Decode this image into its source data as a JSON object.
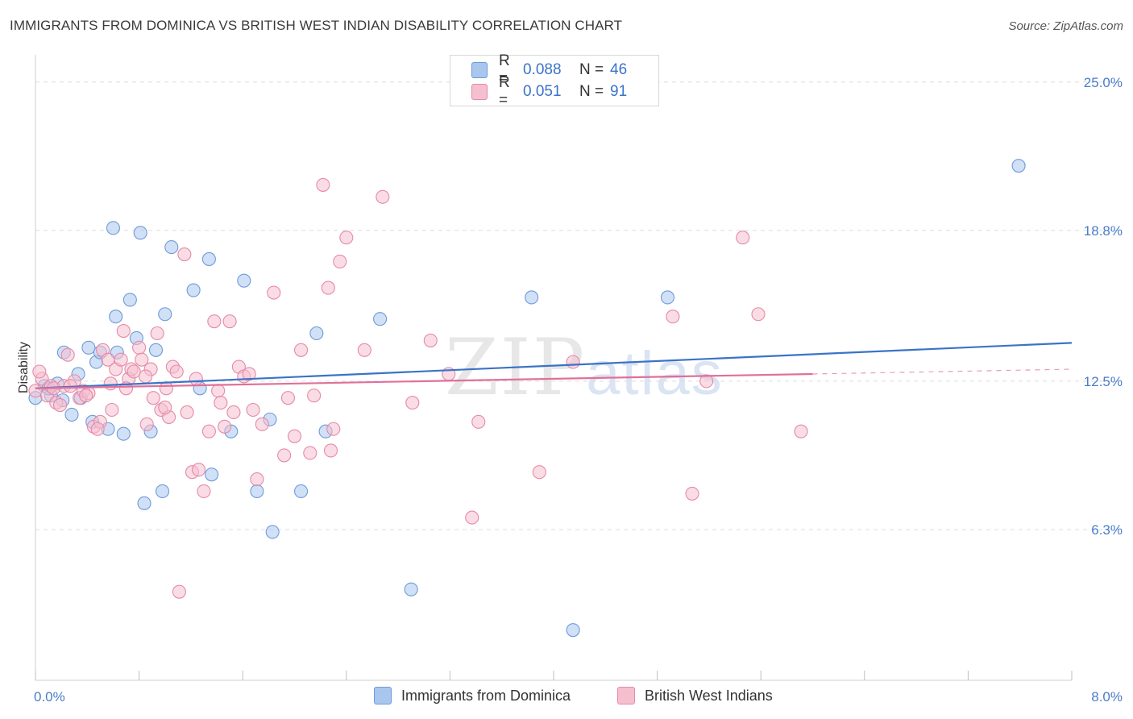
{
  "header": {
    "title": "IMMIGRANTS FROM DOMINICA VS BRITISH WEST INDIAN DISABILITY CORRELATION CHART",
    "source": "Source: ZipAtlas.com"
  },
  "watermark": {
    "zip": "ZIP",
    "atlas": "atlas"
  },
  "legend": {
    "rows": [
      {
        "r_label": "R =",
        "r_value": "0.088",
        "n_label": "N =",
        "n_value": "46",
        "color": "#a9c6ef",
        "border": "#6f9ad8"
      },
      {
        "r_label": "R =",
        "r_value": "0.051",
        "n_label": "N =",
        "n_value": "91",
        "color": "#f6bfd0",
        "border": "#e58aa8"
      }
    ]
  },
  "bottom_legend": [
    {
      "label": "Immigrants from Dominica",
      "color": "#a9c6ef",
      "border": "#6f9ad8"
    },
    {
      "label": "British West Indians",
      "color": "#f6bfd0",
      "border": "#e58aa8"
    }
  ],
  "chart_data": {
    "type": "scatter",
    "ylabel": "Disability",
    "xlim": [
      0,
      8
    ],
    "ylim": [
      0,
      25.8
    ],
    "x_tick_labels": [
      {
        "value": 0,
        "label": "0.0%"
      },
      {
        "value": 8,
        "label": "8.0%"
      }
    ],
    "y_ticks": [
      {
        "value": 6.3,
        "label": "6.3%"
      },
      {
        "value": 12.5,
        "label": "12.5%"
      },
      {
        "value": 18.8,
        "label": "18.8%"
      },
      {
        "value": 25.0,
        "label": "25.0%"
      }
    ],
    "grid": "horizontal dashed",
    "series": [
      {
        "name": "Immigrants from Dominica",
        "color": "#6f9ad8",
        "fill": "#a9c6ef",
        "trend": {
          "x0": 0,
          "y0": 12.2,
          "x1": 8,
          "y1": 14.1,
          "color": "#3a73c8"
        },
        "points": [
          [
            0.0,
            11.8
          ],
          [
            0.07,
            12.3
          ],
          [
            0.12,
            11.9
          ],
          [
            0.17,
            12.4
          ],
          [
            0.21,
            11.7
          ],
          [
            0.22,
            13.7
          ],
          [
            0.28,
            11.1
          ],
          [
            0.33,
            12.8
          ],
          [
            0.35,
            11.8
          ],
          [
            0.41,
            13.9
          ],
          [
            0.44,
            10.8
          ],
          [
            0.47,
            13.3
          ],
          [
            0.5,
            13.7
          ],
          [
            0.56,
            10.5
          ],
          [
            0.62,
            15.2
          ],
          [
            0.63,
            13.7
          ],
          [
            0.68,
            10.3
          ],
          [
            0.73,
            15.9
          ],
          [
            0.78,
            14.3
          ],
          [
            0.81,
            18.7
          ],
          [
            0.84,
            7.4
          ],
          [
            0.89,
            10.4
          ],
          [
            0.93,
            13.8
          ],
          [
            0.98,
            7.9
          ],
          [
            1.0,
            15.3
          ],
          [
            1.05,
            18.1
          ],
          [
            1.22,
            16.3
          ],
          [
            1.27,
            12.2
          ],
          [
            1.34,
            17.6
          ],
          [
            1.36,
            8.6
          ],
          [
            1.51,
            10.4
          ],
          [
            1.61,
            16.7
          ],
          [
            1.71,
            7.9
          ],
          [
            1.81,
            10.9
          ],
          [
            1.83,
            6.2
          ],
          [
            2.05,
            7.9
          ],
          [
            2.17,
            14.5
          ],
          [
            2.24,
            10.4
          ],
          [
            2.66,
            15.1
          ],
          [
            2.9,
            3.8
          ],
          [
            3.83,
            16.0
          ],
          [
            4.15,
            2.1
          ],
          [
            4.88,
            16.0
          ],
          [
            7.59,
            21.5
          ],
          [
            0.6,
            18.9
          ],
          [
            0.1,
            12.2
          ]
        ]
      },
      {
        "name": "British West Indians",
        "color": "#e58aa8",
        "fill": "#f6bfd0",
        "trend": {
          "x0": 0,
          "y0": 12.2,
          "x1": 6.0,
          "y1": 12.8,
          "dash_to_x": 8.0,
          "dash_to_y": 13.0,
          "color": "#e0709a"
        },
        "points": [
          [
            0.0,
            12.1
          ],
          [
            0.05,
            12.6
          ],
          [
            0.09,
            11.9
          ],
          [
            0.12,
            12.3
          ],
          [
            0.16,
            11.6
          ],
          [
            0.22,
            12.3
          ],
          [
            0.25,
            13.6
          ],
          [
            0.3,
            12.5
          ],
          [
            0.34,
            11.8
          ],
          [
            0.37,
            12.1
          ],
          [
            0.41,
            12.0
          ],
          [
            0.45,
            10.6
          ],
          [
            0.5,
            10.8
          ],
          [
            0.52,
            13.8
          ],
          [
            0.56,
            13.4
          ],
          [
            0.59,
            11.3
          ],
          [
            0.62,
            13.0
          ],
          [
            0.66,
            13.4
          ],
          [
            0.68,
            14.6
          ],
          [
            0.72,
            12.6
          ],
          [
            0.74,
            13.0
          ],
          [
            0.76,
            12.9
          ],
          [
            0.8,
            13.9
          ],
          [
            0.82,
            13.4
          ],
          [
            0.86,
            10.7
          ],
          [
            0.89,
            13.0
          ],
          [
            0.91,
            11.8
          ],
          [
            0.94,
            14.5
          ],
          [
            0.97,
            11.3
          ],
          [
            1.01,
            12.2
          ],
          [
            1.03,
            11.0
          ],
          [
            1.06,
            13.1
          ],
          [
            1.09,
            12.9
          ],
          [
            1.11,
            3.7
          ],
          [
            1.15,
            17.8
          ],
          [
            1.17,
            11.2
          ],
          [
            1.21,
            8.7
          ],
          [
            1.24,
            12.6
          ],
          [
            1.26,
            8.8
          ],
          [
            1.3,
            7.9
          ],
          [
            1.34,
            10.4
          ],
          [
            1.38,
            15.0
          ],
          [
            1.41,
            12.1
          ],
          [
            1.43,
            11.6
          ],
          [
            1.46,
            10.6
          ],
          [
            1.5,
            15.0
          ],
          [
            1.53,
            11.2
          ],
          [
            1.57,
            13.1
          ],
          [
            1.61,
            12.7
          ],
          [
            1.65,
            12.8
          ],
          [
            1.68,
            11.3
          ],
          [
            1.71,
            8.4
          ],
          [
            1.75,
            10.7
          ],
          [
            1.84,
            16.2
          ],
          [
            1.92,
            9.4
          ],
          [
            1.95,
            11.8
          ],
          [
            2.0,
            10.2
          ],
          [
            2.05,
            13.8
          ],
          [
            2.12,
            9.5
          ],
          [
            2.15,
            11.9
          ],
          [
            2.22,
            20.7
          ],
          [
            2.26,
            16.4
          ],
          [
            2.28,
            9.6
          ],
          [
            2.3,
            10.5
          ],
          [
            2.35,
            17.5
          ],
          [
            2.4,
            18.5
          ],
          [
            2.54,
            13.8
          ],
          [
            2.68,
            20.2
          ],
          [
            2.91,
            11.6
          ],
          [
            3.05,
            14.2
          ],
          [
            3.19,
            12.8
          ],
          [
            3.37,
            6.8
          ],
          [
            3.42,
            10.8
          ],
          [
            3.89,
            8.7
          ],
          [
            4.15,
            13.3
          ],
          [
            4.92,
            15.2
          ],
          [
            5.07,
            7.8
          ],
          [
            5.18,
            12.5
          ],
          [
            5.46,
            18.5
          ],
          [
            5.58,
            15.3
          ],
          [
            5.91,
            10.4
          ],
          [
            0.03,
            12.9
          ],
          [
            0.14,
            12.2
          ],
          [
            0.19,
            11.5
          ],
          [
            0.27,
            12.3
          ],
          [
            0.39,
            11.9
          ],
          [
            0.48,
            10.5
          ],
          [
            0.58,
            12.4
          ],
          [
            0.7,
            12.2
          ],
          [
            0.85,
            12.7
          ],
          [
            1.0,
            11.4
          ]
        ]
      }
    ]
  }
}
